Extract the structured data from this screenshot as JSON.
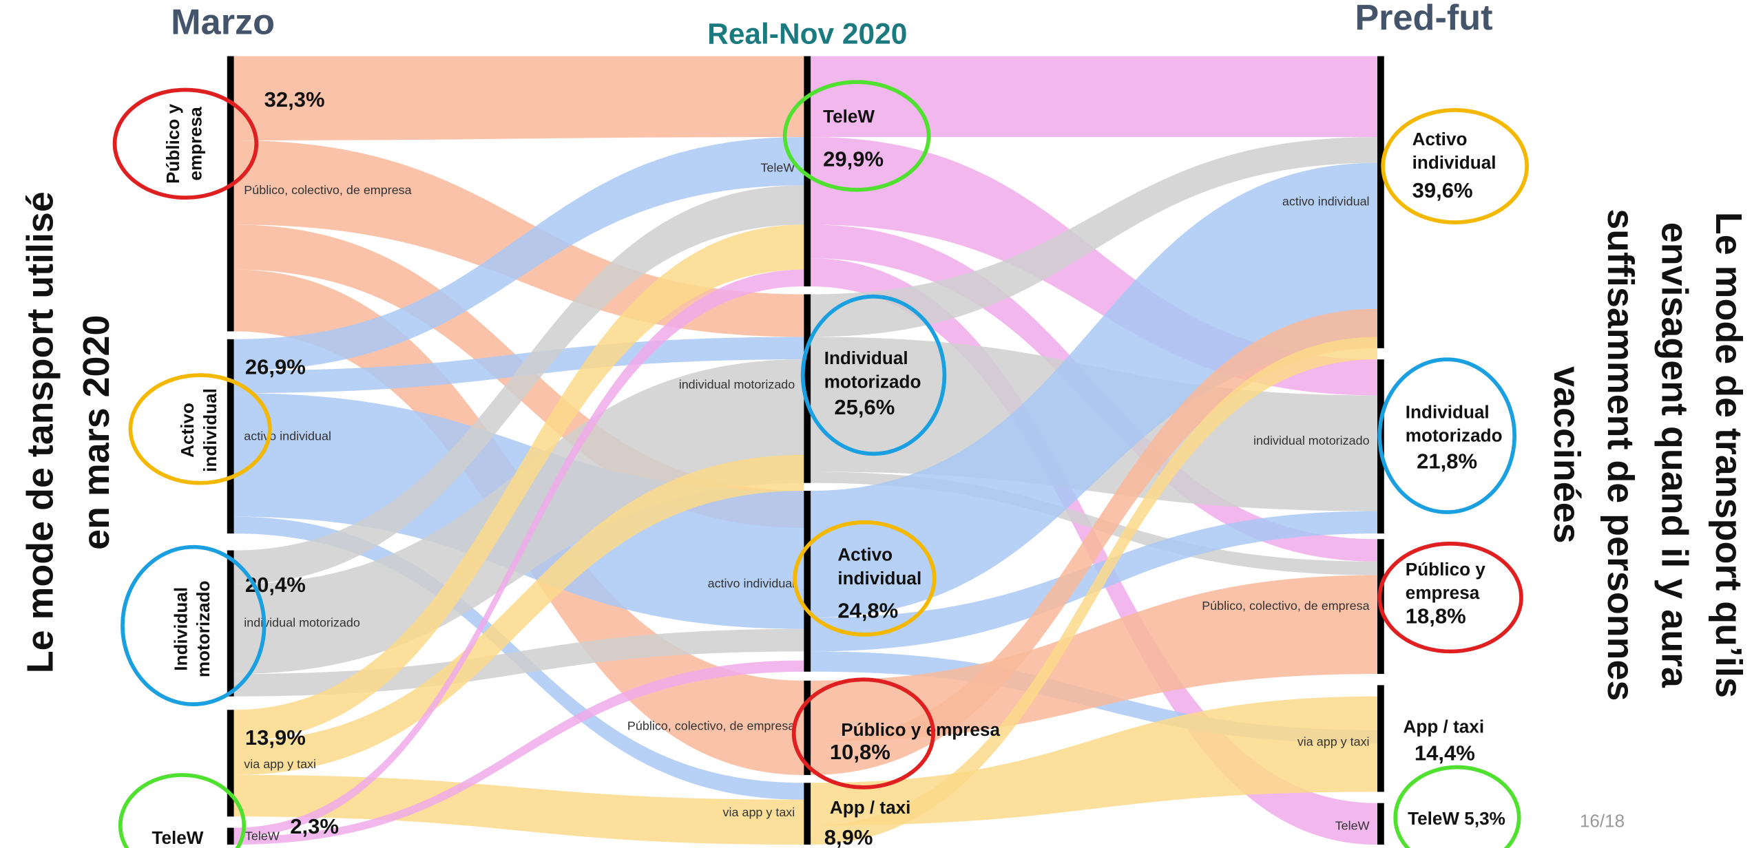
{
  "columns": [
    {
      "title": "Marzo",
      "nodes": [
        {
          "label": "Público, colectivo, de empresa",
          "percent": "32,3%",
          "note": [
            "Público y",
            "empresa"
          ]
        },
        {
          "label": "activo individual",
          "percent": "26,9%",
          "note": [
            "Activo",
            "individual"
          ]
        },
        {
          "label": "individual motorizado",
          "percent": "20,4%",
          "note": [
            "Individual",
            "motorizado"
          ]
        },
        {
          "label": "via app y taxi",
          "percent": "13,9%"
        },
        {
          "label": "TeleW",
          "percent": "2,3%",
          "note": [
            "TeleW"
          ]
        }
      ]
    },
    {
      "title": "Real-Nov 2020",
      "nodes": [
        {
          "label": "TeleW",
          "percent": "29,9%",
          "note": [
            "TeleW"
          ]
        },
        {
          "label": "individual motorizado",
          "percent": "25,6%",
          "note": [
            "Individual",
            "motorizado"
          ]
        },
        {
          "label": "activo individual",
          "percent": "24,8%",
          "note": [
            "Activo",
            "individual"
          ]
        },
        {
          "label": "Público, colectivo, de empresa",
          "percent": "10,8%",
          "note": [
            "Público y empresa"
          ]
        },
        {
          "label": "via app y taxi",
          "percent": "8,9%",
          "note": [
            "App / taxi"
          ]
        }
      ]
    },
    {
      "title": "Pred-fut",
      "nodes": [
        {
          "label": "activo individual",
          "percent": "39,6%",
          "note": [
            "Activo",
            "individual"
          ]
        },
        {
          "label": "individual motorizado",
          "percent": "21,8%",
          "note": [
            "Individual",
            "motorizado"
          ]
        },
        {
          "label": "Público, colectivo, de empresa",
          "percent": "18,8%",
          "note": [
            "Público y",
            "empresa"
          ]
        },
        {
          "label": "via app y taxi",
          "percent": "14,4%",
          "note": [
            "App / taxi"
          ]
        },
        {
          "label": "TeleW",
          "note": [
            "TeleW 5,3%"
          ]
        }
      ]
    }
  ],
  "left_title": [
    "Le mode de tansport utilisé",
    "en mars 2020"
  ],
  "right_title": [
    "Le mode de transport qu’ils",
    "envisagent quand il y aura",
    "suffisamment de personnes",
    "vaccinées"
  ],
  "page_number": "16/18"
}
